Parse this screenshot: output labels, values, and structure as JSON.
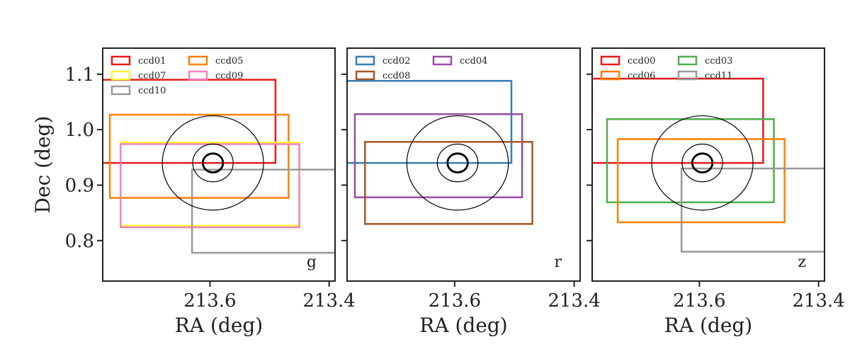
{
  "chart_data": [
    {
      "type": "rectangles",
      "band": "g",
      "xlabel": "RA (deg)",
      "ylabel": "Dec (deg)",
      "xlim": [
        213.78,
        213.39
      ],
      "ylim": [
        0.727,
        1.147
      ],
      "xticks": [
        "213.6",
        "213.4"
      ],
      "yticks": [
        "0.8",
        "0.9",
        "1.0",
        "1.1"
      ],
      "center": [
        213.595,
        0.94
      ],
      "circle_radii": [
        0.017,
        0.034,
        0.085
      ],
      "legend": "top-left",
      "ccds": [
        {
          "name": "ccd01",
          "color": "#e41a1c",
          "ra_min": 213.49,
          "ra_max": 213.79,
          "dec_min": 0.94,
          "dec_max": 1.09
        },
        {
          "name": "ccd05",
          "color": "#ff7f00",
          "ra_min": 213.468,
          "ra_max": 213.768,
          "dec_min": 0.877,
          "dec_max": 1.027
        },
        {
          "name": "ccd07",
          "color": "#ffff33",
          "ra_min": 213.45,
          "ra_max": 213.75,
          "dec_min": 0.827,
          "dec_max": 0.977
        },
        {
          "name": "ccd09",
          "color": "#f781bf",
          "ra_min": 213.45,
          "ra_max": 213.75,
          "dec_min": 0.824,
          "dec_max": 0.974
        },
        {
          "name": "ccd10",
          "color": "#999999",
          "ra_min": 213.38,
          "ra_max": 213.63,
          "dec_min": 0.778,
          "dec_max": 0.928
        }
      ]
    },
    {
      "type": "rectangles",
      "band": "r",
      "xlabel": "RA (deg)",
      "ylabel": "",
      "xlim": [
        213.78,
        213.39
      ],
      "ylim": [
        0.727,
        1.147
      ],
      "xticks": [
        "213.6",
        "213.4"
      ],
      "yticks": [],
      "center": [
        213.595,
        0.94
      ],
      "circle_radii": [
        0.017,
        0.034,
        0.085
      ],
      "legend": "top-left",
      "ccds": [
        {
          "name": "ccd02",
          "color": "#377eb8",
          "ra_min": 213.505,
          "ra_max": 213.79,
          "dec_min": 0.94,
          "dec_max": 1.088
        },
        {
          "name": "ccd04",
          "color": "#984ea3",
          "ra_min": 213.487,
          "ra_max": 213.767,
          "dec_min": 0.878,
          "dec_max": 1.028
        },
        {
          "name": "ccd08",
          "color": "#a65628",
          "ra_min": 213.47,
          "ra_max": 213.75,
          "dec_min": 0.83,
          "dec_max": 0.978
        }
      ]
    },
    {
      "type": "rectangles",
      "band": "z",
      "xlabel": "RA (deg)",
      "ylabel": "",
      "xlim": [
        213.78,
        213.39
      ],
      "ylim": [
        0.727,
        1.147
      ],
      "xticks": [
        "213.6",
        "213.4"
      ],
      "yticks": [],
      "center": [
        213.595,
        0.94
      ],
      "circle_radii": [
        0.017,
        0.034,
        0.085
      ],
      "legend": "top-left",
      "ccds": [
        {
          "name": "ccd00",
          "color": "#e41a1c",
          "ra_min": 213.493,
          "ra_max": 213.79,
          "dec_min": 0.94,
          "dec_max": 1.092
        },
        {
          "name": "ccd03",
          "color": "#4daf4a",
          "ra_min": 213.475,
          "ra_max": 213.755,
          "dec_min": 0.869,
          "dec_max": 1.019
        },
        {
          "name": "ccd06",
          "color": "#ff7f00",
          "ra_min": 213.457,
          "ra_max": 213.737,
          "dec_min": 0.833,
          "dec_max": 0.983
        },
        {
          "name": "ccd11",
          "color": "#999999",
          "ra_min": 213.38,
          "ra_max": 213.63,
          "dec_min": 0.78,
          "dec_max": 0.93
        }
      ]
    }
  ]
}
